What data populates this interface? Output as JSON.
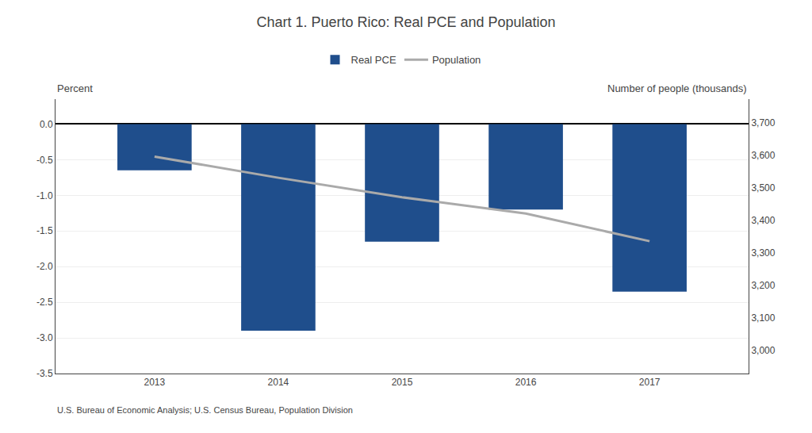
{
  "chart_data": {
    "type": "bar",
    "title": "Chart 1. Puerto Rico: Real PCE and Population",
    "x": [
      2013,
      2014,
      2015,
      2016,
      2017
    ],
    "xlim": [
      2012.2,
      2017.8
    ],
    "xticks": [
      2013,
      2014,
      2015,
      2016,
      2017
    ],
    "series": [
      {
        "name": "Real PCE",
        "type": "bar",
        "color": "#1F4E8C",
        "values": [
          -0.65,
          -2.9,
          -1.65,
          -1.2,
          -2.35
        ]
      },
      {
        "name": "Population",
        "type": "line",
        "color": "#AAAAAA",
        "axis": "y2",
        "values": [
          3595,
          3530,
          3470,
          3420,
          3335
        ]
      }
    ],
    "ylim": [
      -3.5,
      0.35
    ],
    "yticks": [
      {
        "value": 0.0,
        "label": "0.0"
      },
      -0.5,
      {
        "value": -1.0,
        "label": "-1.0"
      },
      -1.5,
      {
        "value": -2.0,
        "label": "-2.0"
      },
      -2.5,
      {
        "value": -3.0,
        "label": "-3.0"
      },
      -3.5
    ],
    "y2lim": [
      2928.57,
      3771.43
    ],
    "y2ticks": [
      {
        "value": 3700,
        "label": "3,700"
      },
      {
        "value": 3600,
        "label": "3,600"
      },
      {
        "value": 3500,
        "label": "3,500"
      },
      {
        "value": 3400,
        "label": "3,400"
      },
      {
        "value": 3300,
        "label": "3,300"
      },
      {
        "value": 3200,
        "label": "3,200"
      },
      {
        "value": 3100,
        "label": "3,100"
      },
      {
        "value": 3000,
        "label": "3,000"
      }
    ],
    "ylabel": "Percent",
    "y2label": "Number of people (thousands)",
    "annotations": [
      "U.S. Bureau of Economic Analysis; U.S. Census Bureau, Population Division"
    ],
    "grid": true,
    "legend": "top"
  }
}
